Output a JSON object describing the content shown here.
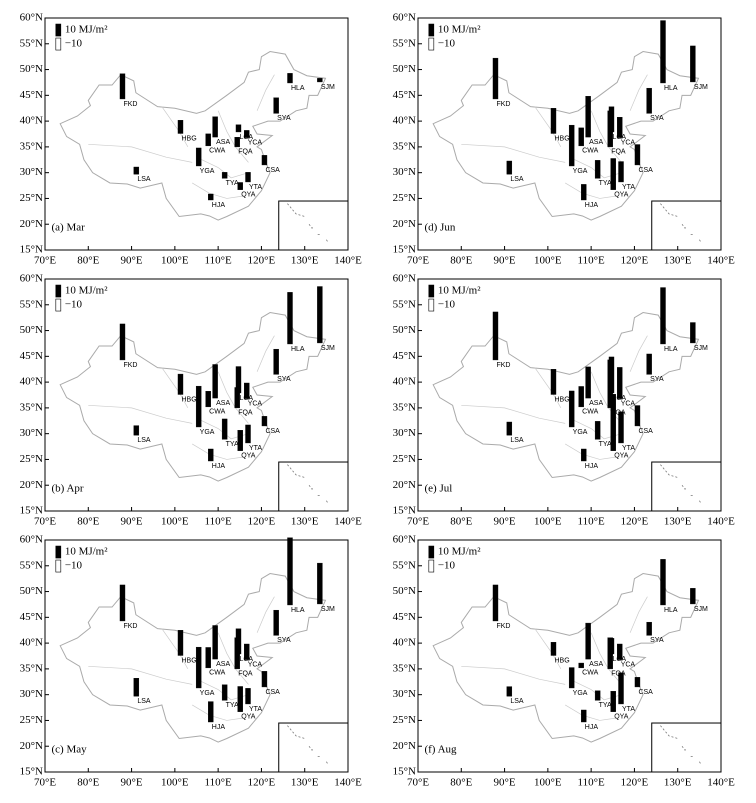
{
  "axes": {
    "xlim": [
      70,
      140
    ],
    "ylim": [
      15,
      60
    ],
    "xticks": [
      {
        "value": 70,
        "label": "70°E"
      },
      {
        "value": 80,
        "label": "80°E"
      },
      {
        "value": 90,
        "label": "90°E"
      },
      {
        "value": 100,
        "label": "100°E"
      },
      {
        "value": 110,
        "label": "110°E"
      },
      {
        "value": 120,
        "label": "120°E"
      },
      {
        "value": 130,
        "label": "130°E"
      },
      {
        "value": 140,
        "label": "140°E"
      }
    ],
    "yticks": [
      {
        "value": 15,
        "label": "15°N"
      },
      {
        "value": 20,
        "label": "20°N"
      },
      {
        "value": 25,
        "label": "25°N"
      },
      {
        "value": 30,
        "label": "30°N"
      },
      {
        "value": 35,
        "label": "35°N"
      },
      {
        "value": 40,
        "label": "40°N"
      },
      {
        "value": 45,
        "label": "45°N"
      },
      {
        "value": 50,
        "label": "50°N"
      },
      {
        "value": 55,
        "label": "55°N"
      },
      {
        "value": 60,
        "label": "60°N"
      }
    ]
  },
  "legend": {
    "positive": {
      "value": 10,
      "label": "10  MJ/m²"
    },
    "negative": {
      "value": -10,
      "label": "−10"
    }
  },
  "stations": {
    "names": [
      "FKD",
      "LSA",
      "HBG",
      "YGA",
      "CWA",
      "ASA",
      "LCA",
      "YCA",
      "FQA",
      "TYA",
      "HJA",
      "QYA",
      "YTA",
      "CSA",
      "SYA",
      "HLA",
      "SJM"
    ],
    "lon": [
      87.9,
      91.1,
      101.3,
      105.5,
      107.7,
      109.3,
      114.7,
      116.6,
      114.4,
      111.5,
      108.3,
      115.1,
      116.9,
      120.7,
      123.4,
      126.6,
      133.5
    ],
    "lat": [
      44.3,
      29.7,
      37.6,
      31.3,
      35.2,
      36.9,
      37.9,
      36.8,
      35.0,
      28.9,
      24.7,
      26.7,
      28.2,
      31.5,
      41.5,
      47.4,
      47.6
    ]
  },
  "chart_data": [
    {
      "type": "map-bar",
      "title": "(a)  Mar",
      "color": "#000000",
      "values": [
        21,
        6,
        11,
        15,
        10,
        17,
        6,
        6,
        8,
        5,
        5,
        6,
        8,
        8,
        13,
        8,
        3
      ]
    },
    {
      "type": "map-bar",
      "title": "(b)  Apr",
      "color": "#000000",
      "values": [
        30,
        8,
        17,
        34,
        13,
        28,
        22,
        13,
        17,
        17,
        10,
        17,
        15,
        8,
        21,
        43,
        47
      ]
    },
    {
      "type": "map-bar",
      "title": "(c)  May",
      "color": "#000000",
      "values": [
        30,
        15,
        21,
        34,
        17,
        28,
        21,
        13,
        26,
        13,
        17,
        21,
        13,
        13,
        21,
        56,
        34
      ]
    },
    {
      "type": "map-bar",
      "title": "(d)  Jun",
      "color": "#000000",
      "values": [
        34,
        11,
        21,
        34,
        15,
        34,
        21,
        17,
        30,
        15,
        13,
        26,
        17,
        17,
        21,
        52,
        30
      ]
    },
    {
      "type": "map-bar",
      "title": "(e)  Jul",
      "color": "#000000",
      "values": [
        40,
        11,
        21,
        30,
        17,
        26,
        30,
        26,
        40,
        15,
        10,
        47,
        26,
        17,
        17,
        47,
        17
      ]
    },
    {
      "type": "map-bar",
      "title": "(f)  Aug",
      "color": "#000000",
      "values": [
        30,
        8,
        11,
        17,
        4,
        30,
        13,
        13,
        26,
        8,
        10,
        17,
        26,
        8,
        11,
        38,
        13
      ]
    }
  ]
}
